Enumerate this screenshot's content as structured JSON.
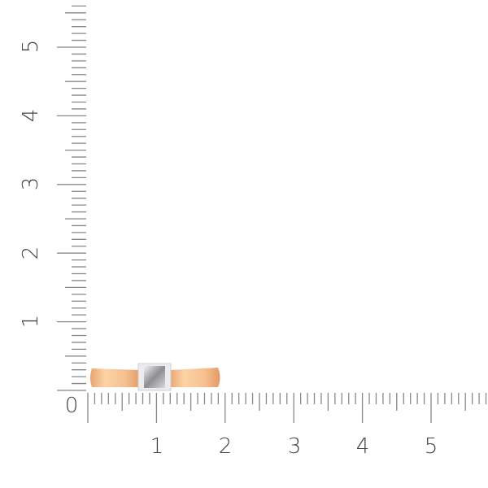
{
  "scale": {
    "unit": "cm",
    "origin_label": "0",
    "x_labels": [
      "1",
      "2",
      "3",
      "4",
      "5"
    ],
    "y_labels": [
      "1",
      "2",
      "3",
      "4",
      "5"
    ],
    "tick_color": "#888888",
    "label_color": "#444444"
  },
  "product": {
    "type": "ring",
    "band_color": "#f2b98a",
    "setting_color": "#e8e8ea",
    "stone_color": "#b9b9bd"
  }
}
